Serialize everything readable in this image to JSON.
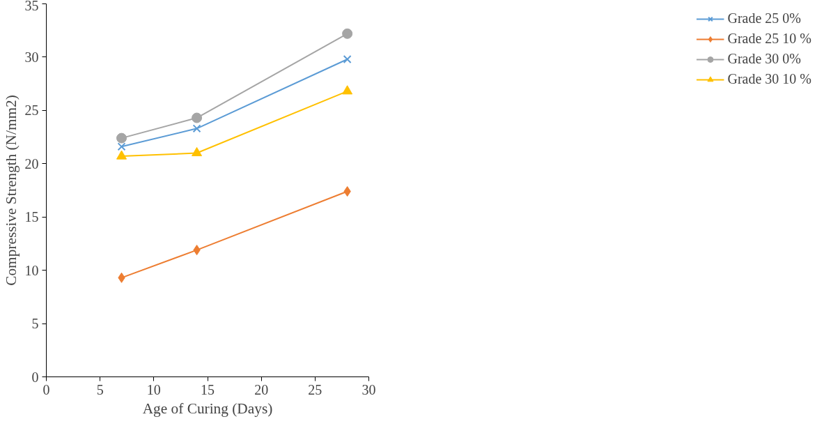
{
  "chart_data": {
    "type": "line",
    "xlabel": "Age of Curing (Days)",
    "ylabel": "Compressive Strength (N/mm2)",
    "x": [
      7,
      14,
      28
    ],
    "series": [
      {
        "name": "Grade 25 0%",
        "color": "#5b9bd5",
        "marker": "cross",
        "values": [
          21.6,
          23.3,
          29.8
        ]
      },
      {
        "name": "Grade 25 10 %",
        "color": "#ed7d31",
        "marker": "diamond",
        "values": [
          9.3,
          11.9,
          17.4
        ]
      },
      {
        "name": "Grade 30 0%",
        "color": "#a5a5a5",
        "marker": "circle",
        "values": [
          22.4,
          24.3,
          32.2
        ]
      },
      {
        "name": "Grade 30 10 %",
        "color": "#ffc000",
        "marker": "triangle",
        "values": [
          20.7,
          21.0,
          26.8
        ]
      }
    ],
    "xlim": [
      0,
      30
    ],
    "xticks": [
      0,
      5,
      10,
      15,
      20,
      25,
      30
    ],
    "ylim": [
      0,
      35
    ],
    "yticks": [
      0,
      5,
      10,
      15,
      20,
      25,
      30,
      35
    ],
    "grid": false,
    "legend": "right",
    "line_style": "solid"
  }
}
